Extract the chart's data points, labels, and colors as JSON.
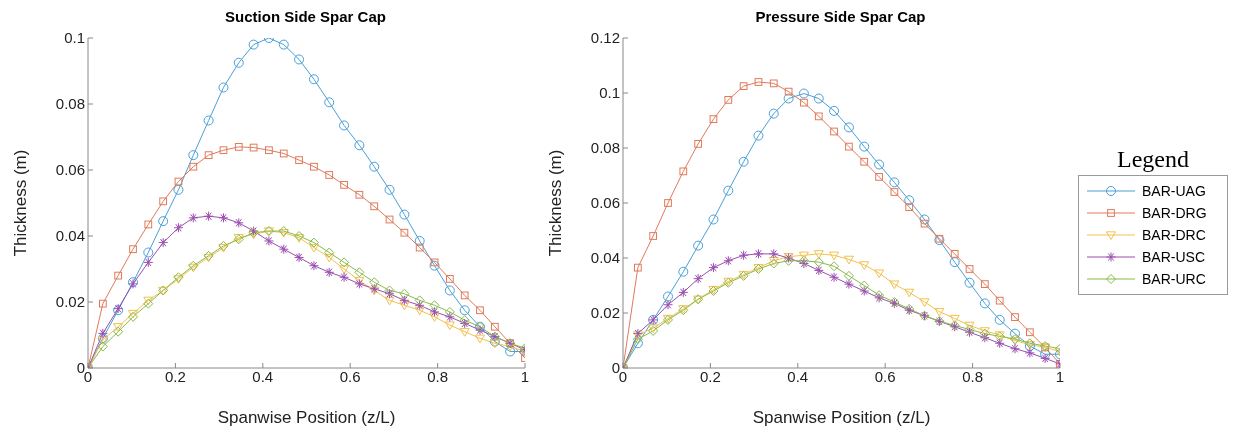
{
  "chart_data": [
    {
      "type": "line",
      "title": "Suction Side Spar Cap",
      "xlabel": "Spanwise Position (z/L)",
      "ylabel": "Thickness (m)",
      "x": [
        0,
        0.034,
        0.069,
        0.103,
        0.138,
        0.172,
        0.207,
        0.241,
        0.276,
        0.31,
        0.345,
        0.379,
        0.414,
        0.448,
        0.483,
        0.517,
        0.552,
        0.586,
        0.621,
        0.655,
        0.69,
        0.724,
        0.759,
        0.793,
        0.828,
        0.862,
        0.897,
        0.931,
        0.966,
        1
      ],
      "xlim": [
        0,
        1
      ],
      "xticks": [
        0,
        0.2,
        0.4,
        0.6,
        0.8,
        1
      ],
      "ylim": [
        0,
        0.1
      ],
      "yticks": [
        0,
        0.02,
        0.04,
        0.06,
        0.08,
        0.1
      ],
      "grid": false,
      "legend": false,
      "series": [
        {
          "color": "#4a9fd8",
          "marker": "circle",
          "values": [
            0,
            0.009,
            0.0175,
            0.026,
            0.035,
            0.0445,
            0.054,
            0.0645,
            0.075,
            0.085,
            0.0925,
            0.098,
            0.1,
            0.098,
            0.0935,
            0.0875,
            0.0805,
            0.0735,
            0.0675,
            0.061,
            0.054,
            0.0465,
            0.0385,
            0.031,
            0.0235,
            0.0175,
            0.0125,
            0.008,
            0.005,
            0.005
          ]
        },
        {
          "color": "#e07a5a",
          "marker": "square",
          "values": [
            0,
            0.0195,
            0.028,
            0.036,
            0.0435,
            0.0505,
            0.0565,
            0.061,
            0.0645,
            0.066,
            0.067,
            0.0668,
            0.066,
            0.065,
            0.063,
            0.061,
            0.0585,
            0.0555,
            0.0525,
            0.049,
            0.045,
            0.041,
            0.0365,
            0.032,
            0.027,
            0.022,
            0.0175,
            0.0125,
            0.0075,
            0.003
          ]
        },
        {
          "color": "#f2c14e",
          "marker": "triangle",
          "values": [
            0,
            0.0085,
            0.0125,
            0.0165,
            0.0205,
            0.0235,
            0.027,
            0.0305,
            0.0335,
            0.0365,
            0.0395,
            0.0405,
            0.0415,
            0.041,
            0.0395,
            0.0365,
            0.0335,
            0.03,
            0.0265,
            0.0235,
            0.0205,
            0.019,
            0.0175,
            0.0155,
            0.013,
            0.011,
            0.009,
            0.0075,
            0.0065,
            0.005
          ]
        },
        {
          "color": "#9b4fb0",
          "marker": "cross",
          "values": [
            0,
            0.0105,
            0.018,
            0.0255,
            0.032,
            0.038,
            0.0425,
            0.0455,
            0.046,
            0.0455,
            0.044,
            0.0415,
            0.0385,
            0.036,
            0.0335,
            0.031,
            0.029,
            0.0275,
            0.0255,
            0.024,
            0.0225,
            0.0205,
            0.019,
            0.017,
            0.0155,
            0.0135,
            0.0115,
            0.0095,
            0.0075,
            0.0055
          ]
        },
        {
          "color": "#86bb4a",
          "marker": "diamond",
          "values": [
            0,
            0.0065,
            0.011,
            0.0155,
            0.0195,
            0.0235,
            0.0275,
            0.031,
            0.034,
            0.037,
            0.039,
            0.041,
            0.0415,
            0.0415,
            0.04,
            0.038,
            0.035,
            0.032,
            0.029,
            0.026,
            0.0235,
            0.0225,
            0.0205,
            0.019,
            0.017,
            0.0145,
            0.0125,
            0.0095,
            0.0075,
            0.006
          ]
        }
      ]
    },
    {
      "type": "line",
      "title": "Pressure Side Spar Cap",
      "xlabel": "Spanwise Position (z/L)",
      "ylabel": "Thickness (m)",
      "x": [
        0,
        0.034,
        0.069,
        0.103,
        0.138,
        0.172,
        0.207,
        0.241,
        0.276,
        0.31,
        0.345,
        0.379,
        0.414,
        0.448,
        0.483,
        0.517,
        0.552,
        0.586,
        0.621,
        0.655,
        0.69,
        0.724,
        0.759,
        0.793,
        0.828,
        0.862,
        0.897,
        0.931,
        0.966,
        1
      ],
      "xlim": [
        0,
        1
      ],
      "xticks": [
        0,
        0.2,
        0.4,
        0.6,
        0.8,
        1
      ],
      "ylim": [
        0,
        0.12
      ],
      "yticks": [
        0,
        0.02,
        0.04,
        0.06,
        0.08,
        0.1,
        0.12
      ],
      "grid": false,
      "legend": "right",
      "legend_title": "Legend",
      "series": [
        {
          "name": "BAR-UAG",
          "color": "#4a9fd8",
          "marker": "circle",
          "values": [
            0,
            0.009,
            0.0175,
            0.026,
            0.035,
            0.0445,
            0.054,
            0.0645,
            0.075,
            0.0845,
            0.0925,
            0.098,
            0.0998,
            0.098,
            0.0935,
            0.0875,
            0.0805,
            0.074,
            0.0675,
            0.061,
            0.054,
            0.0465,
            0.0385,
            0.031,
            0.0235,
            0.0175,
            0.0125,
            0.008,
            0.005,
            0.005
          ]
        },
        {
          "name": "BAR-DRG",
          "color": "#e07a5a",
          "marker": "square",
          "values": [
            0,
            0.0365,
            0.048,
            0.06,
            0.0715,
            0.0815,
            0.0905,
            0.0975,
            0.1025,
            0.104,
            0.1035,
            0.1005,
            0.0965,
            0.0915,
            0.086,
            0.0805,
            0.075,
            0.0695,
            0.064,
            0.0585,
            0.0525,
            0.047,
            0.0415,
            0.036,
            0.0305,
            0.0245,
            0.0185,
            0.013,
            0.0075,
            0.0015
          ]
        },
        {
          "name": "BAR-DRC",
          "color": "#f2c14e",
          "marker": "triangle",
          "values": [
            0,
            0.012,
            0.0145,
            0.018,
            0.0215,
            0.025,
            0.0285,
            0.0315,
            0.034,
            0.0365,
            0.039,
            0.0405,
            0.041,
            0.0415,
            0.041,
            0.0395,
            0.0375,
            0.0345,
            0.0305,
            0.0275,
            0.024,
            0.0205,
            0.018,
            0.0155,
            0.0135,
            0.012,
            0.01,
            0.0085,
            0.0075,
            0.006
          ]
        },
        {
          "name": "BAR-USC",
          "color": "#9b4fb0",
          "marker": "cross",
          "values": [
            0,
            0.0125,
            0.0175,
            0.023,
            0.0275,
            0.0325,
            0.0365,
            0.039,
            0.041,
            0.0415,
            0.0415,
            0.04,
            0.038,
            0.0355,
            0.033,
            0.0305,
            0.028,
            0.0255,
            0.0235,
            0.021,
            0.019,
            0.017,
            0.015,
            0.013,
            0.011,
            0.009,
            0.007,
            0.0055,
            0.0035,
            0.0015
          ]
        },
        {
          "name": "BAR-URC",
          "color": "#86bb4a",
          "marker": "diamond",
          "values": [
            0,
            0.0105,
            0.0135,
            0.0175,
            0.021,
            0.025,
            0.028,
            0.031,
            0.0335,
            0.036,
            0.038,
            0.039,
            0.039,
            0.0385,
            0.037,
            0.0335,
            0.03,
            0.0265,
            0.024,
            0.0215,
            0.019,
            0.017,
            0.0155,
            0.014,
            0.0125,
            0.0115,
            0.0105,
            0.009,
            0.008,
            0.007
          ]
        }
      ]
    }
  ]
}
